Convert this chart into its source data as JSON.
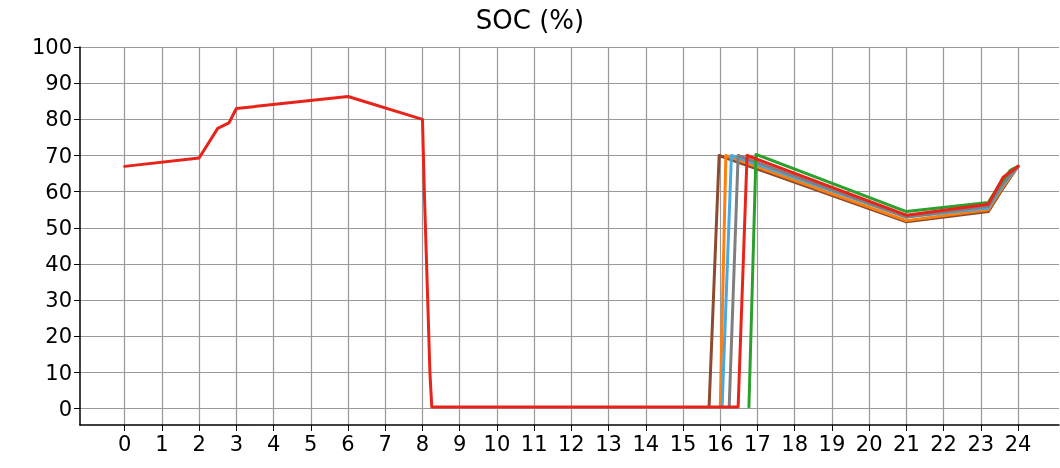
{
  "chart_data": {
    "type": "line",
    "title": "SOC (%)",
    "xlim": [
      -1.2,
      25.1
    ],
    "xticks": [
      0,
      1,
      2,
      3,
      4,
      5,
      6,
      7,
      8,
      9,
      10,
      11,
      12,
      13,
      14,
      15,
      16,
      17,
      18,
      19,
      20,
      21,
      22,
      23,
      24
    ],
    "ylim": [
      -4.5,
      100
    ],
    "yticks": [
      0,
      10,
      20,
      30,
      40,
      50,
      60,
      70,
      80,
      90,
      100
    ],
    "grid": true,
    "marker": "none",
    "line_style": "solid",
    "series": [
      {
        "color": "#8c4a2f",
        "x": [
          15.7,
          15.97,
          21,
          23.2,
          23.6,
          24
        ],
        "values": [
          0.5,
          70,
          51.7,
          54.5,
          61,
          67
        ]
      },
      {
        "color": "#ff7f0e",
        "x": [
          16,
          16.15,
          21,
          23.2,
          23.6,
          24
        ],
        "values": [
          0.5,
          70,
          52,
          55,
          61.5,
          67
        ]
      },
      {
        "color": "#4aa8e0",
        "x": [
          16.05,
          16.3,
          21,
          23.2,
          23.6,
          24
        ],
        "values": [
          0.5,
          70,
          53,
          55.5,
          62,
          67
        ]
      },
      {
        "color": "#7f7f7f",
        "x": [
          16.24,
          16.48,
          21,
          23.2,
          23.6,
          24
        ],
        "values": [
          0.5,
          70,
          53,
          56,
          62.5,
          67
        ]
      },
      {
        "color": "#2ca02c",
        "x": [
          16.77,
          16.96,
          21,
          23.2,
          23.5,
          23.8,
          24
        ],
        "values": [
          0.5,
          70.3,
          54.5,
          57,
          62,
          66,
          67
        ]
      },
      {
        "color": "#e8231a",
        "x": [
          0,
          2,
          2.5,
          2.8,
          3,
          6,
          8,
          8.05,
          8.15,
          8.2,
          8.25,
          16.48,
          16.72,
          21,
          23.2,
          23.6,
          24
        ],
        "values": [
          67,
          69.3,
          77.5,
          79,
          83,
          86.3,
          80,
          60,
          27,
          10,
          0.5,
          0.5,
          70,
          53.5,
          56.5,
          64,
          67
        ]
      }
    ]
  }
}
